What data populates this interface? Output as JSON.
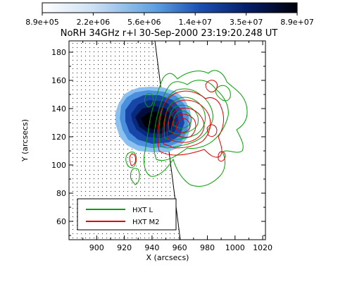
{
  "chart_data": {
    "type": "heatmap",
    "title": "NoRH 34GHz r+l 30-Sep-2000 23:19:20.248 UT",
    "xlabel": "X (arcsecs)",
    "ylabel": "Y (arcsecs)",
    "xlim": [
      880,
      1022
    ],
    "ylim": [
      47,
      188
    ],
    "x_ticks": [
      "900",
      "920",
      "940",
      "960",
      "980",
      "1000",
      "1020"
    ],
    "y_ticks": [
      "60",
      "80",
      "100",
      "120",
      "140",
      "160",
      "180"
    ],
    "colorbar": {
      "ticks": [
        "8.9e+05",
        "2.2e+06",
        "5.6e+06",
        "1.4e+07",
        "3.5e+07",
        "8.9e+07"
      ],
      "scale": "log",
      "colormap": "white-to-blue-to-black"
    },
    "legend": {
      "position": "bottom-left",
      "entries": [
        {
          "label": "HXT L",
          "color": "#00a000"
        },
        {
          "label": "HXT M2",
          "color": "#e00000"
        }
      ]
    },
    "colors": {
      "hxt_l": "#00a000",
      "hxt_m2": "#e00000"
    }
  }
}
